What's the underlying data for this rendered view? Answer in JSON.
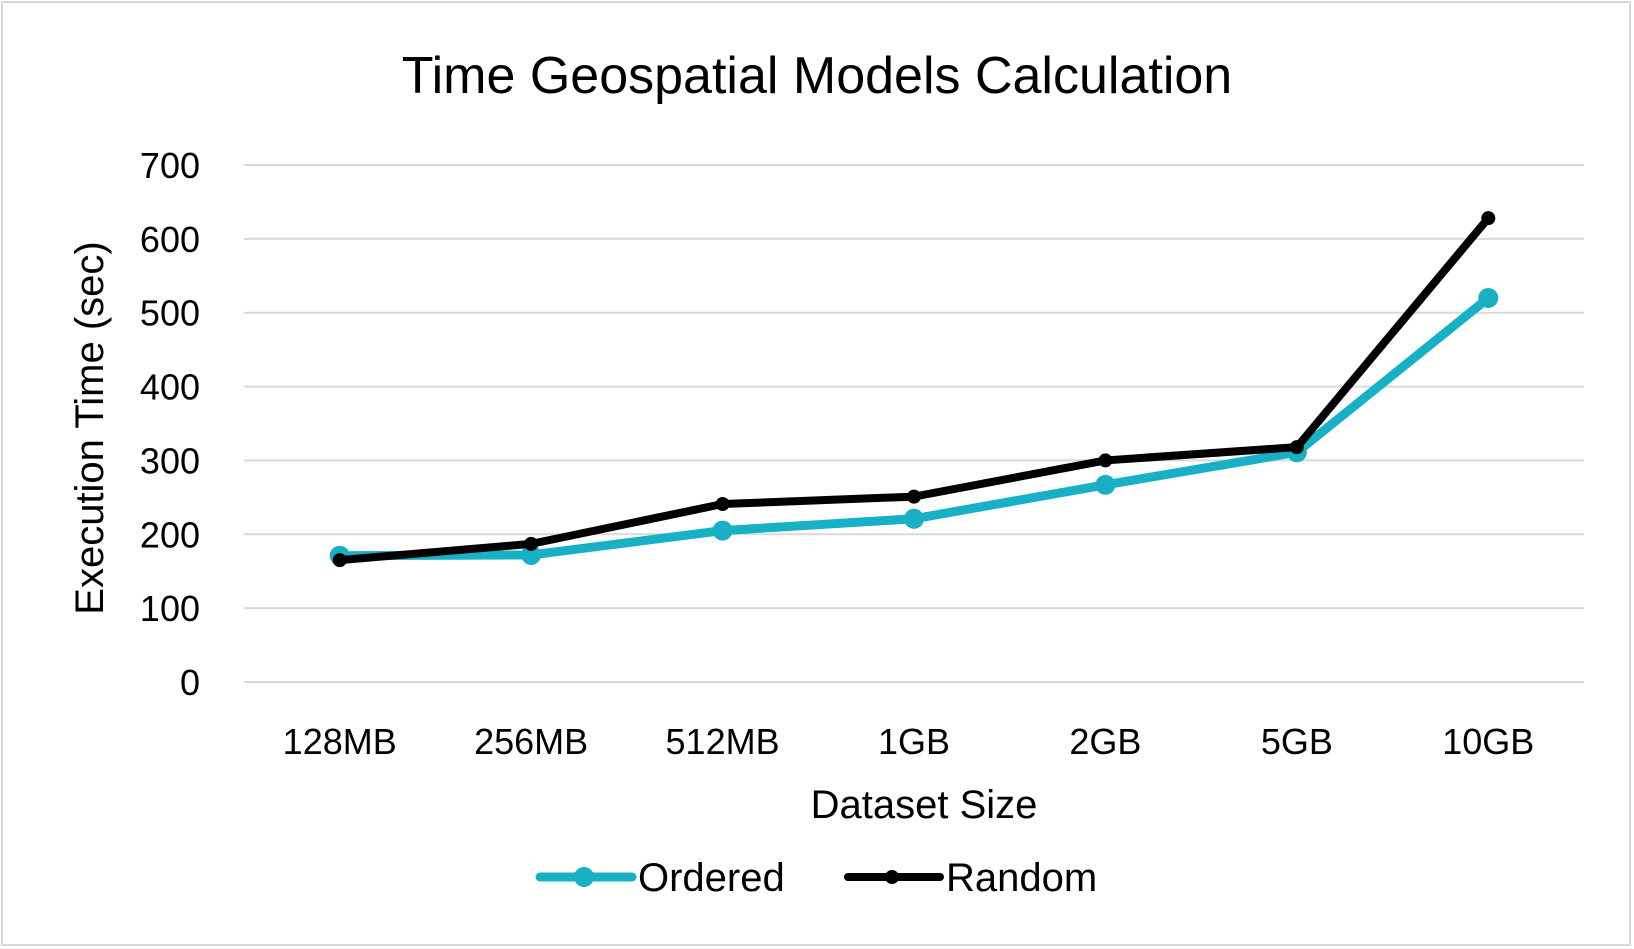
{
  "chart_data": {
    "type": "line",
    "title": "Time Geospatial Models Calculation",
    "xlabel": "Dataset Size",
    "ylabel": "Execution Time (sec)",
    "categories": [
      "128MB",
      "256MB",
      "512MB",
      "1GB",
      "2GB",
      "5GB",
      "10GB"
    ],
    "ylim": [
      0,
      700
    ],
    "yticks": [
      0,
      100,
      200,
      300,
      400,
      500,
      600,
      700
    ],
    "grid": true,
    "legend_position": "bottom",
    "series": [
      {
        "name": "Ordered",
        "color": "#17b0c4",
        "values": [
          171,
          172,
          205,
          221,
          267,
          311,
          520
        ]
      },
      {
        "name": "Random",
        "color": "#000000",
        "values": [
          165,
          187,
          241,
          251,
          300,
          318,
          628
        ]
      }
    ]
  }
}
